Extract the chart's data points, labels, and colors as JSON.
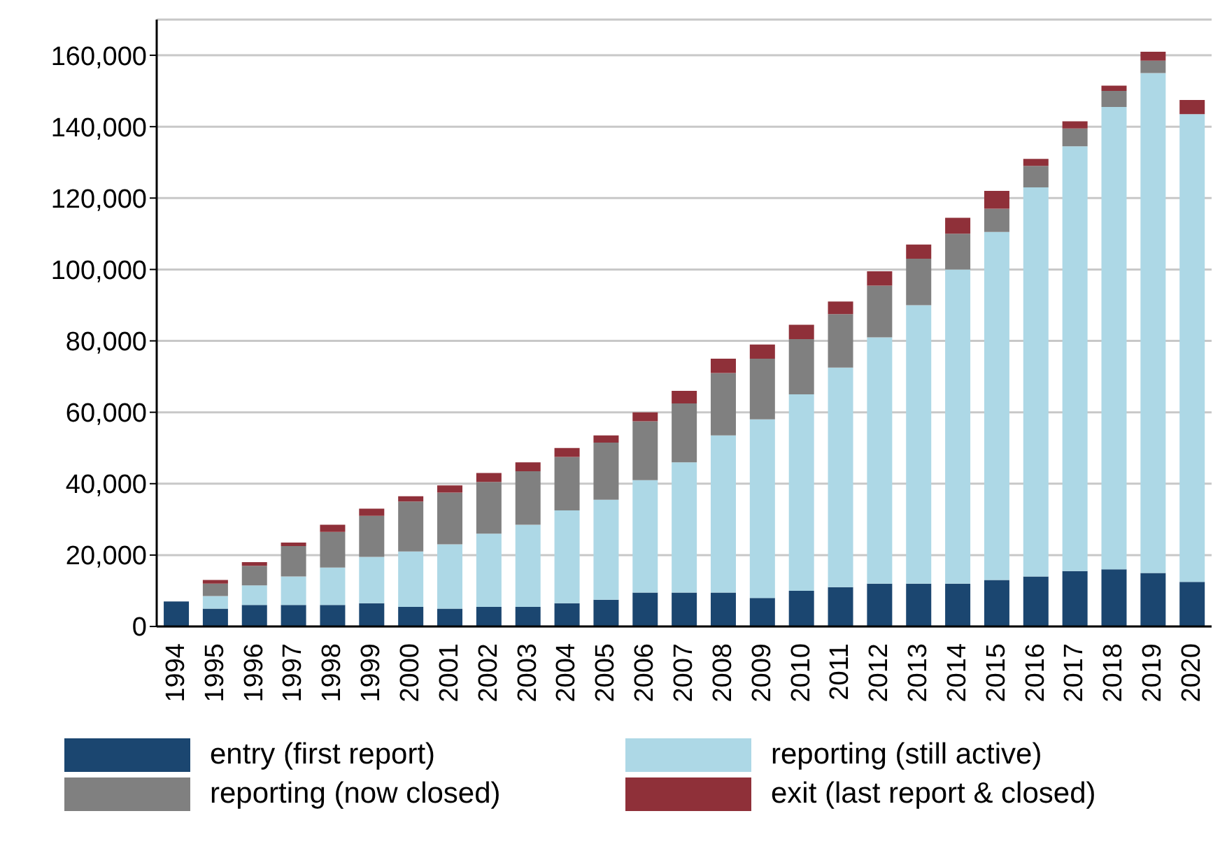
{
  "chart_data": {
    "type": "bar",
    "stacked": true,
    "categories": [
      "1994",
      "1995",
      "1996",
      "1997",
      "1998",
      "1999",
      "2000",
      "2001",
      "2002",
      "2003",
      "2004",
      "2005",
      "2006",
      "2007",
      "2008",
      "2009",
      "2010",
      "2011",
      "2012",
      "2013",
      "2014",
      "2015",
      "2016",
      "2017",
      "2018",
      "2019",
      "2020"
    ],
    "series": [
      {
        "name": "entry (first report)",
        "color": "#1b4670",
        "values": [
          7000,
          5000,
          6000,
          6000,
          6000,
          6500,
          5500,
          5000,
          5500,
          5500,
          6500,
          7500,
          9500,
          9500,
          9500,
          8000,
          10000,
          11000,
          12000,
          12000,
          12000,
          13000,
          14000,
          15500,
          16000,
          15000,
          12500
        ]
      },
      {
        "name": "reporting (still active)",
        "color": "#add8e6",
        "values": [
          0,
          3500,
          5500,
          8000,
          10500,
          13000,
          15500,
          18000,
          20500,
          23000,
          26000,
          28000,
          31500,
          36500,
          44000,
          50000,
          55000,
          61500,
          69000,
          78000,
          88000,
          97500,
          109000,
          119000,
          129500,
          140000,
          131000
        ]
      },
      {
        "name": "reporting (now closed)",
        "color": "#808080",
        "values": [
          0,
          3500,
          5500,
          8500,
          10000,
          11500,
          14000,
          14500,
          14500,
          15000,
          15000,
          16000,
          16500,
          16500,
          17500,
          17000,
          15500,
          15000,
          14500,
          13000,
          10000,
          6500,
          6000,
          5000,
          4500,
          3500,
          0
        ]
      },
      {
        "name": "exit (last report & closed)",
        "color": "#8f3039",
        "values": [
          0,
          1000,
          1000,
          1000,
          2000,
          2000,
          1500,
          2000,
          2500,
          2500,
          2500,
          2000,
          2500,
          3500,
          4000,
          4000,
          4000,
          3500,
          4000,
          4000,
          4500,
          5000,
          2000,
          2000,
          1500,
          2500,
          4000
        ]
      }
    ],
    "ylim": [
      0,
      170000
    ],
    "yticks": [
      {
        "value": 0,
        "label": "0"
      },
      {
        "value": 20000,
        "label": "20,000"
      },
      {
        "value": 40000,
        "label": "40,000"
      },
      {
        "value": 60000,
        "label": "60,000"
      },
      {
        "value": 80000,
        "label": "80,000"
      },
      {
        "value": 100000,
        "label": "100,000"
      },
      {
        "value": 120000,
        "label": "120,000"
      },
      {
        "value": 140000,
        "label": "140,000"
      },
      {
        "value": 160000,
        "label": "160,000"
      }
    ],
    "grid": "y",
    "legend": "bottom"
  }
}
